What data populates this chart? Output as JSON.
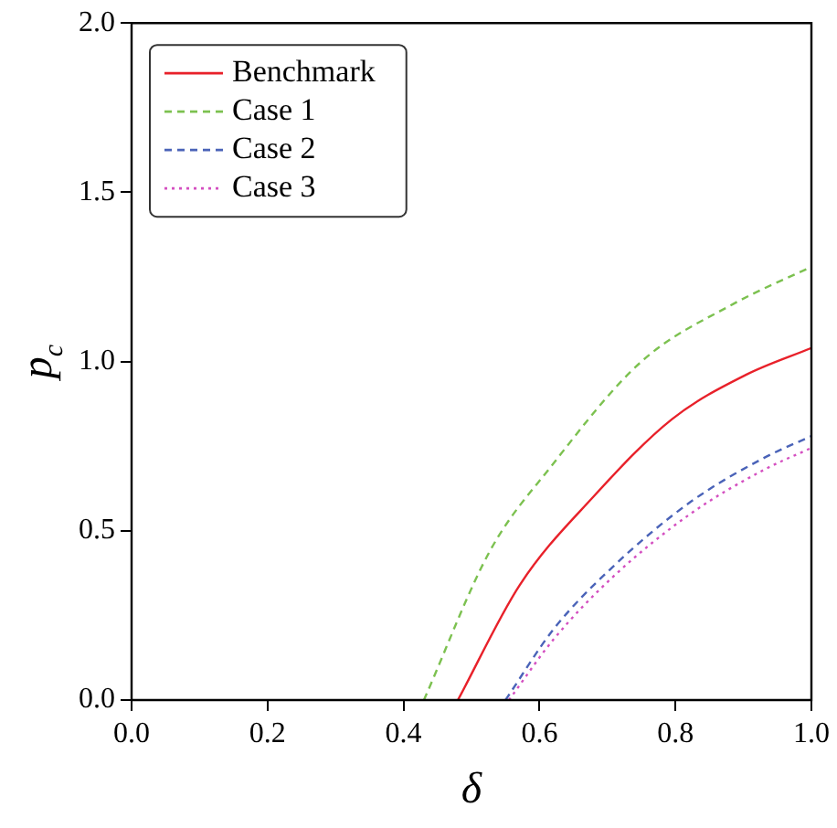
{
  "chart_data": {
    "type": "line",
    "xlabel": "δ",
    "ylabel": "p$_{c}$",
    "xlim": [
      0,
      1
    ],
    "ylim": [
      0,
      2
    ],
    "xticks": [
      {
        "value": 0,
        "label": "0.0"
      },
      0.2,
      0.4,
      0.6,
      0.8,
      {
        "value": 1,
        "label": "1.0"
      }
    ],
    "yticks": [
      {
        "value": 0,
        "label": "0.0"
      },
      0.5,
      {
        "value": 1,
        "label": "1.0"
      },
      1.5,
      {
        "value": 2,
        "label": "2.0"
      }
    ],
    "grid": false,
    "legend": "top left",
    "marker": "none",
    "series": [
      {
        "name": "Benchmark",
        "color": "#e8212a",
        "line_style": "solid",
        "x": [
          0.48,
          0.571,
          0.679,
          0.795,
          0.903,
          1
        ],
        "values": [
          0,
          0.34,
          0.6,
          0.83,
          0.96,
          1.04
        ]
      },
      {
        "name": "Case 1",
        "color": "#7cc150",
        "line_style": "dashed",
        "x": [
          0.43,
          0.527,
          0.617,
          0.75,
          0.885,
          1
        ],
        "values": [
          0,
          0.44,
          0.69,
          1.0,
          1.17,
          1.28
        ]
      },
      {
        "name": "Case 2",
        "color": "#4a63b8",
        "line_style": "dashed",
        "x": [
          0.55,
          0.621,
          0.706,
          0.822,
          0.93,
          1
        ],
        "values": [
          0,
          0.21,
          0.39,
          0.585,
          0.715,
          0.78
        ]
      },
      {
        "name": "Case 3",
        "color": "#d44fc0",
        "line_style": "dotted",
        "x": [
          0.555,
          0.621,
          0.706,
          0.822,
          0.93,
          1
        ],
        "values": [
          0,
          0.18,
          0.36,
          0.55,
          0.68,
          0.745
        ]
      }
    ]
  }
}
